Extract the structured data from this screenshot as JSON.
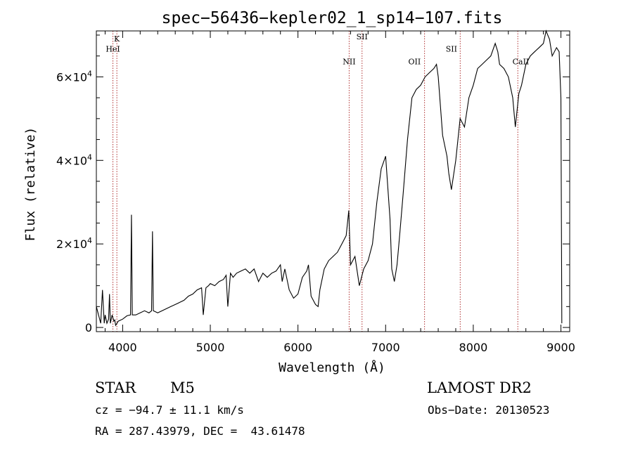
{
  "chart_data": {
    "type": "line",
    "title": "spec−56436−kepler02_1_sp14−107.fits",
    "xlabel": "Wavelength (Å)",
    "ylabel": "Flux (relative)",
    "xlim": [
      3700,
      9100
    ],
    "ylim": [
      -1000,
      71000
    ],
    "x_ticks": [
      {
        "value": 4000,
        "label": "4000"
      },
      {
        "value": 5000,
        "label": "5000"
      },
      {
        "value": 6000,
        "label": "6000"
      },
      {
        "value": 7000,
        "label": "7000"
      },
      {
        "value": 8000,
        "label": "8000"
      },
      {
        "value": 9000,
        "label": "9000"
      }
    ],
    "y_ticks": [
      {
        "value": 0,
        "mantissa": "0",
        "exponent": ""
      },
      {
        "value": 20000,
        "mantissa": "2×10",
        "exponent": "4"
      },
      {
        "value": 40000,
        "mantissa": "4×10",
        "exponent": "4"
      },
      {
        "value": 60000,
        "mantissa": "6×10",
        "exponent": "4"
      }
    ],
    "grid": false,
    "lines": [
      {
        "label": "K",
        "x": 3934,
        "label_flux": 68500
      },
      {
        "label": "HeI",
        "x": 3889,
        "label_flux": 66000
      },
      {
        "label": "NII",
        "x": 6584,
        "label_flux": 63000
      },
      {
        "label": "SII",
        "x": 6731,
        "label_flux": 69000
      },
      {
        "label": "OII",
        "x": 7330,
        "label_flux": 63000
      },
      {
        "label": "SII",
        "x": 7751,
        "label_flux": 66000
      },
      {
        "label": "CaII",
        "x": 8542,
        "label_flux": 63000
      }
    ],
    "line_markers": [
      3889,
      3934,
      6584,
      6731,
      7444,
      7851,
      8508
    ],
    "series": [
      {
        "x": [
          3700,
          3750,
          3770,
          3790,
          3800,
          3820,
          3840,
          3850,
          3860,
          3880,
          3900,
          3910,
          3920,
          3950,
          4000,
          4050,
          4090,
          4100,
          4110,
          4150,
          4200,
          4250,
          4300,
          4330,
          4340,
          4350,
          4400,
          4450,
          4500,
          4550,
          4600,
          4650,
          4700,
          4750,
          4800,
          4850,
          4900,
          4920,
          4950,
          4980,
          5000,
          5050,
          5100,
          5150,
          5180,
          5200,
          5230,
          5260,
          5300,
          5350,
          5400,
          5450,
          5500,
          5550,
          5600,
          5650,
          5700,
          5750,
          5800,
          5820,
          5850,
          5900,
          5950,
          6000,
          6050,
          6100,
          6120,
          6150,
          6200,
          6230,
          6250,
          6300,
          6350,
          6400,
          6450,
          6500,
          6550,
          6580,
          6600,
          6650,
          6700,
          6750,
          6800,
          6850,
          6900,
          6950,
          7000,
          7050,
          7070,
          7100,
          7130,
          7160,
          7200,
          7250,
          7300,
          7350,
          7400,
          7450,
          7500,
          7550,
          7580,
          7600,
          7650,
          7700,
          7720,
          7750,
          7800,
          7850,
          7900,
          7950,
          8000,
          8050,
          8100,
          8150,
          8200,
          8250,
          8280,
          8300,
          8350,
          8400,
          8450,
          8480,
          8500,
          8520,
          8550,
          8600,
          8650,
          8700,
          8750,
          8800,
          8830,
          8850,
          8870,
          8900,
          8950,
          8980,
          9000,
          9010
        ],
        "y": [
          5000,
          1000,
          9000,
          1000,
          3000,
          1000,
          2000,
          8000,
          1000,
          3000,
          1500,
          1800,
          500,
          1500,
          2000,
          2800,
          3000,
          27000,
          3000,
          3000,
          3500,
          4000,
          3500,
          4000,
          23000,
          4000,
          3500,
          4000,
          4500,
          5000,
          5500,
          6000,
          6500,
          7500,
          8000,
          9000,
          9500,
          3000,
          9500,
          10000,
          10500,
          10000,
          11000,
          11500,
          12500,
          5000,
          13000,
          12000,
          13000,
          13500,
          14000,
          13000,
          14000,
          11000,
          13000,
          12000,
          13000,
          13500,
          15000,
          11000,
          14000,
          9000,
          7000,
          8000,
          12000,
          13500,
          15000,
          7500,
          5500,
          5000,
          9000,
          14000,
          16000,
          17000,
          18000,
          20000,
          22000,
          28000,
          15000,
          17000,
          10000,
          14000,
          16000,
          20000,
          30000,
          38000,
          41000,
          26000,
          14000,
          11000,
          15000,
          22000,
          32000,
          45000,
          55000,
          57000,
          58000,
          60000,
          61000,
          62000,
          63000,
          60000,
          46000,
          41000,
          37000,
          33000,
          40000,
          50000,
          48000,
          55000,
          58000,
          62000,
          63000,
          64000,
          65000,
          68000,
          66000,
          63000,
          62000,
          60000,
          55000,
          48000,
          52000,
          56000,
          58000,
          63000,
          65000,
          66000,
          67000,
          68000,
          71000,
          70000,
          69000,
          65000,
          67000,
          66000,
          55000,
          1000
        ]
      }
    ]
  },
  "info": {
    "object_type": "STAR",
    "subclass": "M5",
    "survey": "LAMOST DR2",
    "cz": "cz = −94.7 ± 11.1 km/s",
    "obs_date": "Obs−Date: 20130523",
    "coords": "RA = 287.43979, DEC =  43.61478"
  }
}
